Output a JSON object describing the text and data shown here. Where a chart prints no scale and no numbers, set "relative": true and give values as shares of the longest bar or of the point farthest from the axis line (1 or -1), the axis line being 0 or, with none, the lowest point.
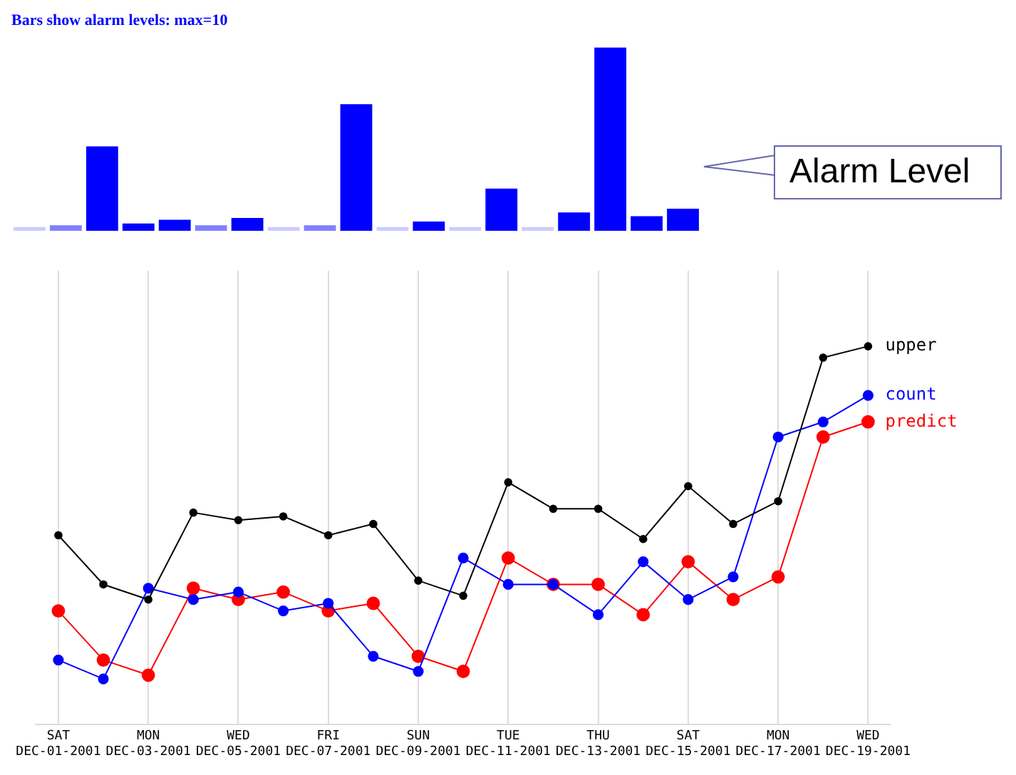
{
  "chart_data": [
    {
      "type": "bar",
      "title": "Bars show alarm levels: max=10",
      "relative": true,
      "annotations": [
        "Alarm Level"
      ],
      "categories": [
        null,
        null,
        null,
        null,
        null,
        null,
        null,
        null,
        null,
        null,
        null,
        null,
        null,
        null,
        null,
        null,
        null,
        null,
        null
      ],
      "values": [
        0.02,
        0.03,
        0.46,
        0.04,
        0.06,
        0.03,
        0.07,
        0.02,
        0.03,
        0.69,
        0.02,
        0.05,
        0.02,
        0.23,
        0.02,
        0.1,
        1,
        0.08,
        0.12
      ],
      "colors": [
        "#ccccff",
        "#8080ff",
        "#0000ff",
        "#0000ff",
        "#0000ff",
        "#8080ff",
        "#0000ff",
        "#ccccff",
        "#8080ff",
        "#0000ff",
        "#ccccff",
        "#0000ff",
        "#ccccff",
        "#0000ff",
        "#ccccff",
        "#0000ff",
        "#0000ff",
        "#0000ff",
        "#0000ff"
      ]
    },
    {
      "type": "line",
      "relative": true,
      "grid": "x",
      "marker": "circle",
      "categories": [
        "SAT\nDEC-01-2001",
        null,
        "MON\nDEC-03-2001",
        null,
        "WED\nDEC-05-2001",
        null,
        "FRI\nDEC-07-2001",
        null,
        "SUN\nDEC-09-2001",
        null,
        "TUE\nDEC-11-2001",
        null,
        "THU\nDEC-13-2001",
        null,
        "SAT\nDEC-15-2001",
        null,
        "MON\nDEC-17-2001",
        null,
        "WED\nDEC-19-2001"
      ],
      "series": [
        {
          "name": "upper",
          "color": "#000000",
          "values": [
            0.5,
            0.37,
            0.33,
            0.56,
            0.54,
            0.55,
            0.5,
            0.53,
            0.38,
            0.34,
            0.64,
            0.57,
            0.57,
            0.49,
            0.63,
            0.53,
            0.59,
            0.97,
            1
          ]
        },
        {
          "name": "count",
          "color": "#0000ff",
          "values": [
            0.17,
            0.12,
            0.36,
            0.33,
            0.35,
            0.3,
            0.32,
            0.18,
            0.14,
            0.44,
            0.37,
            0.37,
            0.29,
            0.43,
            0.33,
            0.39,
            0.76,
            0.8,
            0.87
          ]
        },
        {
          "name": "predict",
          "color": "#ff0000",
          "values": [
            0.3,
            0.17,
            0.13,
            0.36,
            0.33,
            0.35,
            0.3,
            0.32,
            0.18,
            0.14,
            0.44,
            0.37,
            0.37,
            0.29,
            0.43,
            0.33,
            0.39,
            0.76,
            0.8
          ]
        }
      ]
    }
  ]
}
